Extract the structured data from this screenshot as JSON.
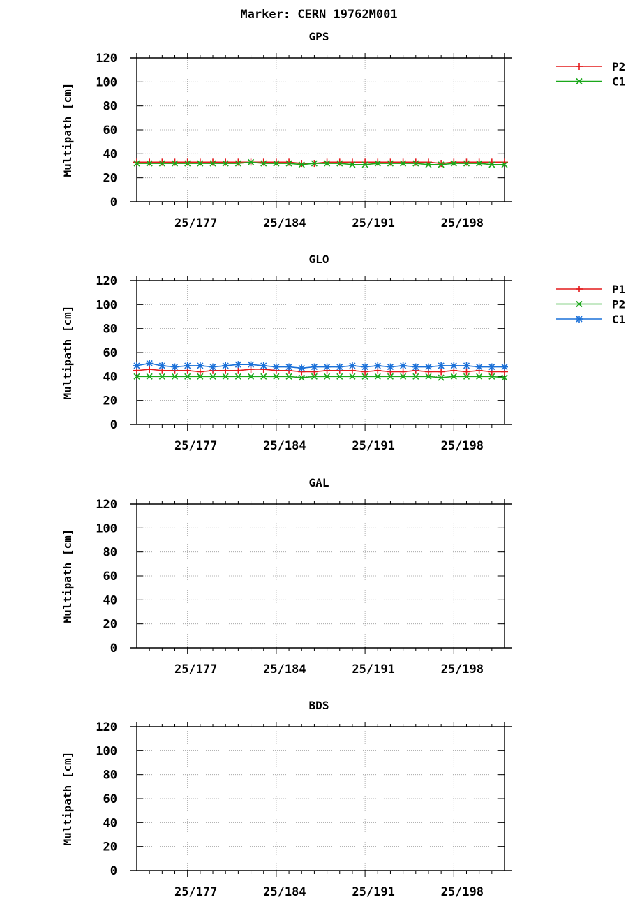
{
  "title": "Marker: CERN 19762M001",
  "colors": {
    "P1": "#e41a1c",
    "P2": "#1aa81a",
    "C1": "#1a70d8",
    "grid": "#9a9a9a",
    "axis": "#000000"
  },
  "chart_data": [
    {
      "type": "line",
      "title": "GPS",
      "xlabel": "",
      "ylabel": "Multipath [cm]",
      "ylim": [
        0,
        120
      ],
      "yticks": [
        0,
        20,
        40,
        60,
        80,
        100,
        120
      ],
      "xlim": [
        173,
        202
      ],
      "xticks": [
        {
          "value": 177,
          "label": "25/177"
        },
        {
          "value": 184,
          "label": "25/184"
        },
        {
          "value": 191,
          "label": "25/191"
        },
        {
          "value": 198,
          "label": "25/198"
        }
      ],
      "legend_position": "right",
      "x": [
        173,
        174,
        175,
        176,
        177,
        178,
        179,
        180,
        181,
        182,
        183,
        184,
        185,
        186,
        187,
        188,
        189,
        190,
        191,
        192,
        193,
        194,
        195,
        196,
        197,
        198,
        199,
        200,
        201,
        202
      ],
      "series": [
        {
          "name": "P2",
          "color_key": "P1",
          "marker": "plus",
          "values": [
            33,
            33,
            33,
            33,
            33,
            33,
            33,
            33,
            33,
            33,
            33,
            33,
            33,
            32,
            32,
            33,
            33,
            33,
            33,
            33,
            33,
            33,
            33,
            33,
            32,
            33,
            33,
            33,
            33,
            33
          ]
        },
        {
          "name": "C1",
          "color_key": "P2",
          "marker": "cross",
          "values": [
            32,
            32,
            32,
            32,
            32,
            32,
            32,
            32,
            32,
            33,
            32,
            32,
            32,
            31,
            32,
            32,
            32,
            31,
            31,
            32,
            32,
            32,
            32,
            31,
            31,
            32,
            32,
            32,
            31,
            31
          ]
        }
      ]
    },
    {
      "type": "line",
      "title": "GLO",
      "xlabel": "",
      "ylabel": "Multipath [cm]",
      "ylim": [
        0,
        120
      ],
      "yticks": [
        0,
        20,
        40,
        60,
        80,
        100,
        120
      ],
      "xlim": [
        173,
        202
      ],
      "xticks": [
        {
          "value": 177,
          "label": "25/177"
        },
        {
          "value": 184,
          "label": "25/184"
        },
        {
          "value": 191,
          "label": "25/191"
        },
        {
          "value": 198,
          "label": "25/198"
        }
      ],
      "legend_position": "right",
      "x": [
        173,
        174,
        175,
        176,
        177,
        178,
        179,
        180,
        181,
        182,
        183,
        184,
        185,
        186,
        187,
        188,
        189,
        190,
        191,
        192,
        193,
        194,
        195,
        196,
        197,
        198,
        199,
        200,
        201,
        202
      ],
      "series": [
        {
          "name": "P1",
          "color_key": "P1",
          "marker": "plus",
          "values": [
            45,
            46,
            45,
            45,
            45,
            44,
            45,
            45,
            45,
            46,
            46,
            45,
            45,
            44,
            44,
            45,
            45,
            45,
            44,
            45,
            44,
            44,
            45,
            44,
            44,
            45,
            44,
            45,
            44,
            44
          ]
        },
        {
          "name": "P2",
          "color_key": "P2",
          "marker": "cross",
          "values": [
            40,
            40,
            40,
            40,
            40,
            40,
            40,
            40,
            40,
            40,
            40,
            40,
            40,
            39,
            40,
            40,
            40,
            40,
            40,
            40,
            40,
            40,
            40,
            40,
            39,
            40,
            40,
            40,
            40,
            39
          ]
        },
        {
          "name": "C1",
          "color_key": "C1",
          "marker": "star",
          "values": [
            49,
            51,
            49,
            48,
            49,
            49,
            48,
            49,
            50,
            50,
            49,
            48,
            48,
            47,
            48,
            48,
            48,
            49,
            48,
            49,
            48,
            49,
            48,
            48,
            49,
            49,
            49,
            48,
            48,
            48
          ]
        }
      ]
    },
    {
      "type": "line",
      "title": "GAL",
      "xlabel": "",
      "ylabel": "Multipath [cm]",
      "ylim": [
        0,
        120
      ],
      "yticks": [
        0,
        20,
        40,
        60,
        80,
        100,
        120
      ],
      "xlim": [
        173,
        202
      ],
      "xticks": [
        {
          "value": 177,
          "label": "25/177"
        },
        {
          "value": 184,
          "label": "25/184"
        },
        {
          "value": 191,
          "label": "25/191"
        },
        {
          "value": 198,
          "label": "25/198"
        }
      ],
      "legend_position": "right",
      "x": [],
      "series": []
    },
    {
      "type": "line",
      "title": "BDS",
      "xlabel": "",
      "ylabel": "Multipath [cm]",
      "ylim": [
        0,
        120
      ],
      "yticks": [
        0,
        20,
        40,
        60,
        80,
        100,
        120
      ],
      "xlim": [
        173,
        202
      ],
      "xticks": [
        {
          "value": 177,
          "label": "25/177"
        },
        {
          "value": 184,
          "label": "25/184"
        },
        {
          "value": 191,
          "label": "25/191"
        },
        {
          "value": 198,
          "label": "25/198"
        }
      ],
      "legend_position": "right",
      "x": [],
      "series": []
    }
  ]
}
